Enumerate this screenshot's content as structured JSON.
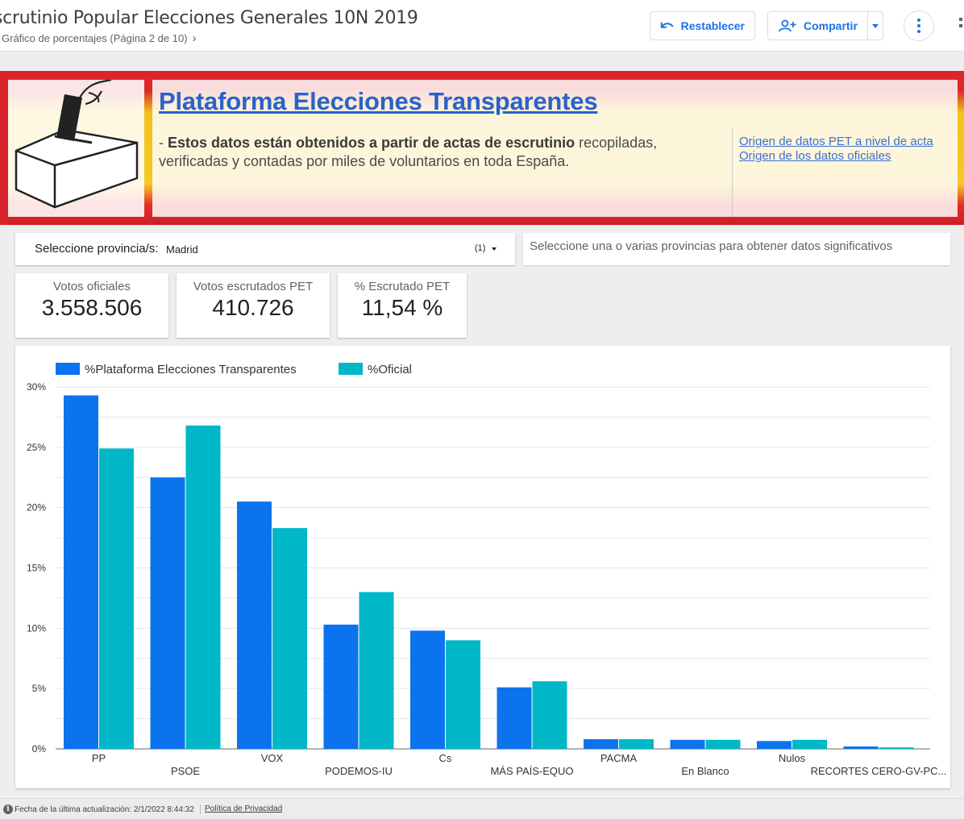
{
  "header": {
    "title": "scrutinio Popular Elecciones Generales 10N 2019",
    "page_label": "Gráfico de porcentajes (Página 2 de 10)",
    "reset_label": "Restablecer",
    "share_label": "Compartir"
  },
  "banner": {
    "heading": "Plataforma Elecciones Transparentes",
    "desc_prefix": "- ",
    "desc_bold": "Estos datos están obtenidos a partir de actas de escrutinio",
    "desc_rest": " recopiladas, verificadas y contadas por miles de voluntarios en toda España.",
    "link_pet": "Origen de datos PET a nivel de acta",
    "link_official": "Origen de los datos oficiales"
  },
  "filter": {
    "label": "Seleccione provincia/s:",
    "value": "Madrid",
    "count": "(1)",
    "hint": "Seleccione una o varias provincias para obtener datos significativos"
  },
  "kpis": [
    {
      "label": "Votos oficiales",
      "value": "3.558.506"
    },
    {
      "label": "Votos escrutados PET",
      "value": "410.726"
    },
    {
      "label": "% Escrutado PET",
      "value": "11,54 %"
    }
  ],
  "footer": {
    "updated": "Fecha de la última actualización: 2/1/2022 8:44:32",
    "privacy": "Política de Privacidad"
  },
  "chart_data": {
    "type": "bar",
    "categories": [
      "PP",
      "PSOE",
      "VOX",
      "PODEMOS-IU",
      "Cs",
      "MÁS PAÍS-EQUO",
      "PACMA",
      "En Blanco",
      "Nulos",
      "RECORTES CERO-GV-PC..."
    ],
    "series": [
      {
        "name": "%Plataforma Elecciones Transparentes",
        "color": "#0b73ee",
        "values": [
          29.3,
          22.5,
          20.5,
          10.3,
          9.8,
          5.1,
          0.8,
          0.75,
          0.65,
          0.2
        ]
      },
      {
        "name": "%Oficial",
        "color": "#00b7c7",
        "values": [
          24.9,
          26.8,
          18.3,
          13.0,
          9.0,
          5.6,
          0.8,
          0.75,
          0.75,
          0.12
        ]
      }
    ],
    "yticks": [
      "0%",
      "5%",
      "10%",
      "15%",
      "20%",
      "25%",
      "30%"
    ],
    "ylim": [
      0,
      30
    ],
    "legend_position": "top-left",
    "grid": true
  }
}
